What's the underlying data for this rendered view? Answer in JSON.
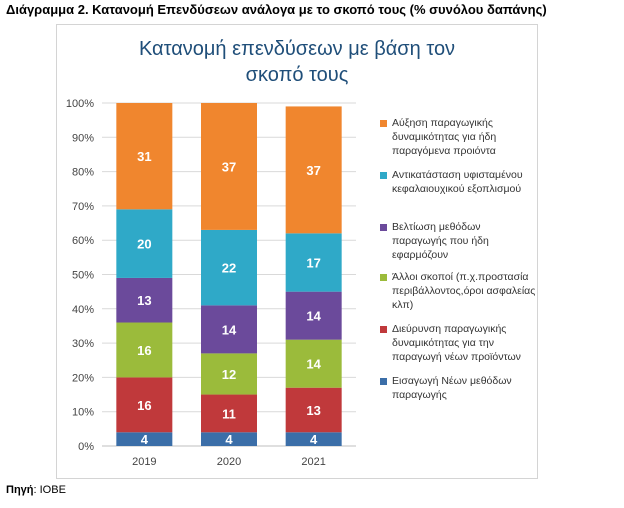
{
  "caption": "Διάγραμμα 2. Κατανομή Επενδύσεων ανάλογα με το σκοπό τους (% συνόλου δαπάνης)",
  "source": {
    "label": "Πηγή",
    "separator": ": ",
    "value": "ΙΟΒΕ"
  },
  "chart_data": {
    "type": "bar",
    "stacked": true,
    "title_lines": [
      "Κατανομή επενδύσεων με βάση τον",
      "σκοπό τους"
    ],
    "categories": [
      "2019",
      "2020",
      "2021"
    ],
    "ylim": [
      0,
      100
    ],
    "yticks": [
      "0%",
      "10%",
      "20%",
      "30%",
      "40%",
      "50%",
      "60%",
      "70%",
      "80%",
      "90%",
      "100%"
    ],
    "grid": true,
    "legend_position": "right",
    "series": [
      {
        "name": "Εισαγωγή Νέων μεθόδων παραγωγής",
        "color": "#3b6ea8",
        "values": [
          4,
          4,
          4
        ],
        "labels": [
          "4",
          "4",
          "4"
        ]
      },
      {
        "name": "Διεύρυνση παραγωγικής δυναμικότητας για την παραγωγή νέων προϊόντων",
        "color": "#c0393b",
        "values": [
          16,
          11,
          13
        ],
        "labels": [
          "16",
          "11",
          "13"
        ]
      },
      {
        "name": "Άλλοι σκοποί (π.χ.προστασία περιβάλλοντος,όροι ασφαλείας κλπ)",
        "color": "#9bbb3b",
        "values": [
          16,
          12,
          14
        ],
        "labels": [
          "16",
          "12",
          "14"
        ]
      },
      {
        "name": "Βελτίωση μεθόδων παραγωγής που ήδη εφαρμόζουν",
        "color": "#6b4a9b",
        "values": [
          13,
          14,
          14
        ],
        "labels": [
          "13",
          "14",
          "14"
        ]
      },
      {
        "name": "Αντικατάσταση υφισταμένου κεφαλαιουχικού εξοπλισμού",
        "color": "#2fa9c8",
        "values": [
          20,
          22,
          17
        ],
        "labels": [
          "20",
          "22",
          "17"
        ]
      },
      {
        "name": "Αύξηση παραγωγικής δυναμικότητας για ήδη παραγόμενα προιόντα",
        "color": "#f0862e",
        "values": [
          31,
          37,
          37
        ],
        "labels": [
          "31",
          "37",
          "37"
        ]
      }
    ],
    "legend_order": [
      5,
      4,
      3,
      2,
      1,
      0
    ]
  }
}
